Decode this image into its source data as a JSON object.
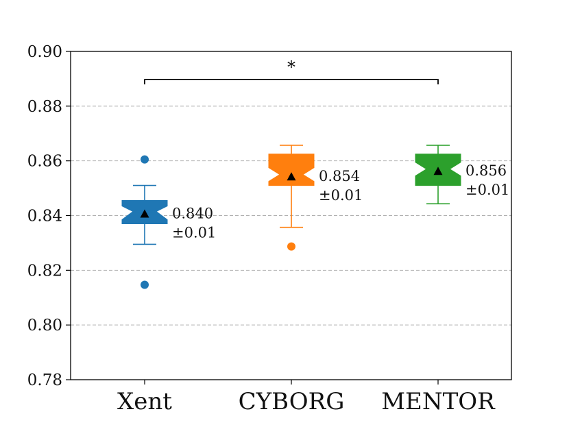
{
  "chart_data": {
    "type": "box",
    "title": "",
    "xlabel": "",
    "ylabel": "",
    "ylim": [
      0.78,
      0.9
    ],
    "yticks": [
      0.78,
      0.8,
      0.82,
      0.84,
      0.86,
      0.88,
      0.9
    ],
    "ytick_labels": [
      "0.78",
      "0.80",
      "0.82",
      "0.84",
      "0.86",
      "0.88",
      "0.90"
    ],
    "grid": "horizontal-dashed",
    "categories": [
      "Xent",
      "CYBORG",
      "MENTOR"
    ],
    "series": [
      {
        "category": "Xent",
        "color": "#1f77b4",
        "whisker_low": 0.8295,
        "q1": 0.837,
        "median": 0.8415,
        "q3": 0.8455,
        "whisker_high": 0.851,
        "notch_low": 0.8385,
        "notch_high": 0.8435,
        "mean": 0.8405,
        "outliers": [
          0.8605,
          0.8147
        ],
        "mean_label": "0.840",
        "std_label": "±0.01"
      },
      {
        "category": "CYBORG",
        "color": "#ff7f0e",
        "whisker_low": 0.8357,
        "q1": 0.851,
        "median": 0.855,
        "q3": 0.8625,
        "whisker_high": 0.8657,
        "notch_low": 0.8525,
        "notch_high": 0.8575,
        "mean": 0.8541,
        "outliers": [
          0.8287
        ],
        "mean_label": "0.854",
        "std_label": "±0.01"
      },
      {
        "category": "MENTOR",
        "color": "#2ca02c",
        "whisker_low": 0.8443,
        "q1": 0.851,
        "median": 0.857,
        "q3": 0.8625,
        "whisker_high": 0.8657,
        "notch_low": 0.8545,
        "notch_high": 0.8595,
        "mean": 0.8561,
        "outliers": [],
        "mean_label": "0.856",
        "std_label": "±0.01"
      }
    ],
    "significance": {
      "from": "Xent",
      "to": "MENTOR",
      "y": 0.8897,
      "label": "*"
    }
  }
}
